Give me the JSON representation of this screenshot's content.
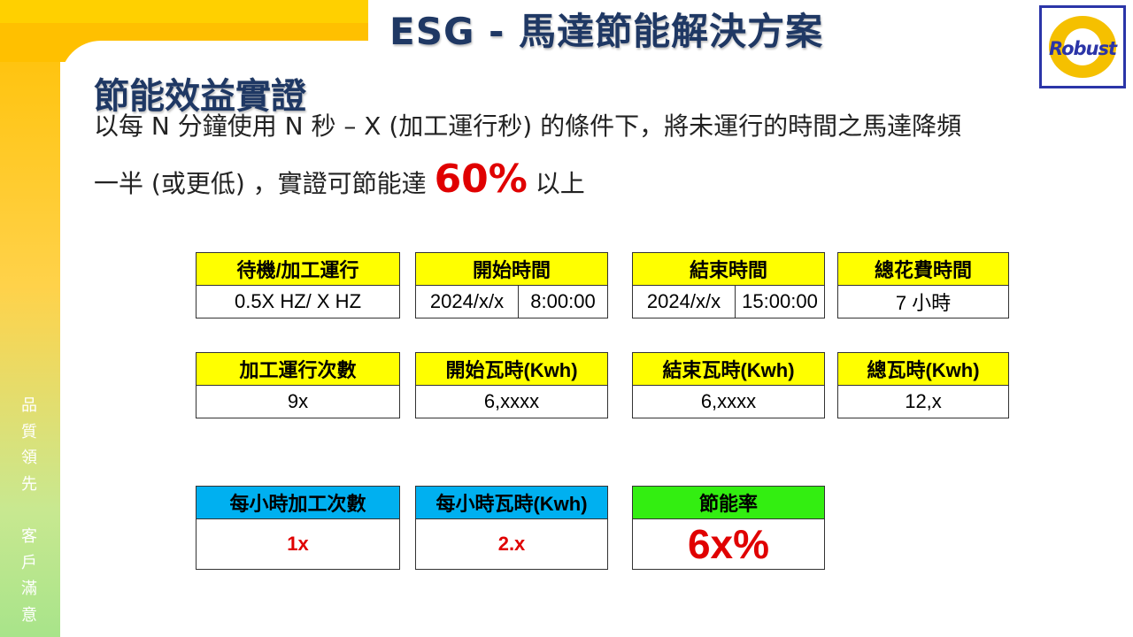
{
  "header": {
    "title": "ESG - 馬達節能解決方案",
    "logo_text": "Robust"
  },
  "sidebar": {
    "slogan": [
      "品",
      "質",
      "領",
      "先",
      "客",
      "戶",
      "滿",
      "意"
    ]
  },
  "content": {
    "subtitle": "節能效益實證",
    "line1": "以每 N 分鐘使用 N 秒 – X (加工運行秒) 的條件下，將未運行的時間之馬達降頻",
    "line2_pre": "一半 (或更低) ，實證可節能達 ",
    "line2_highlight": "60%",
    "line2_post": " 以上"
  },
  "row1": {
    "standby": {
      "header": "待機/加工運行",
      "value": "0.5X HZ/ X HZ"
    },
    "start_time": {
      "header": "開始時間",
      "date": "2024/x/x",
      "time": "8:00:00"
    },
    "end_time": {
      "header": "結束時間",
      "date": "2024/x/x",
      "time": "15:00:00"
    },
    "total_time": {
      "header": "總花費時間",
      "value": "7 小時"
    }
  },
  "row2": {
    "run_count": {
      "header": "加工運行次數",
      "value": "9x"
    },
    "start_kwh": {
      "header": "開始瓦時(Kwh)",
      "value": "6,xxxx"
    },
    "end_kwh": {
      "header": "結束瓦時(Kwh)",
      "value": "6,xxxx"
    },
    "total_kwh": {
      "header": "總瓦時(Kwh)",
      "value": "12,x"
    }
  },
  "row3": {
    "per_hour_count": {
      "header": "每小時加工次數",
      "value": "1x"
    },
    "per_hour_kwh": {
      "header": "每小時瓦時(Kwh)",
      "value": "2.x"
    },
    "saving_rate": {
      "header": "節能率",
      "value": "6x%"
    }
  },
  "colors": {
    "header_yellow": "#ffff00",
    "header_blue": "#00b0f0",
    "header_green": "#33ee11",
    "highlight_red": "#e00000",
    "title_navy": "#1f3864"
  }
}
